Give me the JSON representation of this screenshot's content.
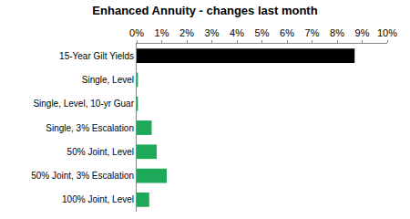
{
  "chart_data": {
    "type": "bar",
    "orientation": "horizontal",
    "title": "Enhanced Annuity - changes last month",
    "categories": [
      "15-Year Gilt Yields",
      "Single, Level",
      "Single, Level, 10-yr Guar",
      "Single, 3% Escalation",
      "50% Joint, Level",
      "50% Joint, 3% Escalation",
      "100% Joint, Level"
    ],
    "values": [
      8.7,
      0.05,
      0.05,
      0.6,
      0.8,
      1.2,
      0.5
    ],
    "colors": [
      "#000000",
      "#1ea85a",
      "#1ea85a",
      "#1ea85a",
      "#1ea85a",
      "#1ea85a",
      "#1ea85a"
    ],
    "xlim": [
      0,
      10
    ],
    "xticks": [
      {
        "value": 0,
        "label": "0%"
      },
      {
        "value": 1,
        "label": "1%"
      },
      {
        "value": 2,
        "label": "2%"
      },
      {
        "value": 3,
        "label": "3%"
      },
      {
        "value": 4,
        "label": "4%"
      },
      {
        "value": 5,
        "label": "5%"
      },
      {
        "value": 6,
        "label": "6%"
      },
      {
        "value": 7,
        "label": "7%"
      },
      {
        "value": 8,
        "label": "8%"
      },
      {
        "value": 9,
        "label": "9%"
      },
      {
        "value": 10,
        "label": "10%"
      }
    ],
    "grid": false
  }
}
